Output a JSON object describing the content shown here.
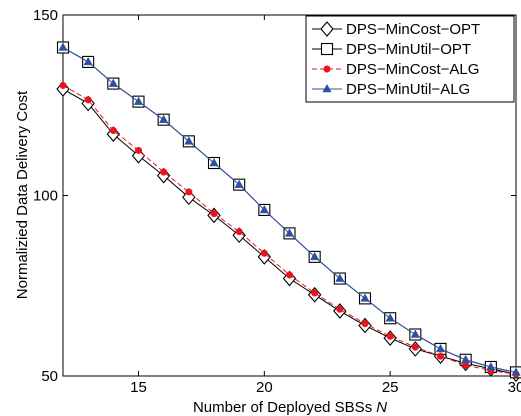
{
  "chart_data": {
    "type": "line",
    "xlabel": "Number of Deployed SBSs",
    "xlabel_var": "N",
    "ylabel": "Normalizied Data Delivery Cost",
    "xlim": [
      12,
      30
    ],
    "ylim": [
      50,
      150
    ],
    "xticks": [
      15,
      20,
      25,
      30
    ],
    "yticks": [
      50,
      100,
      150
    ],
    "grid": false,
    "legend_position": "top-right",
    "x": [
      12,
      13,
      14,
      15,
      16,
      17,
      18,
      19,
      20,
      21,
      22,
      23,
      24,
      25,
      26,
      27,
      28,
      29,
      30
    ],
    "series": [
      {
        "name": "DPS−MinCost−OPT",
        "marker": "diamond-open",
        "line": "solid",
        "color": "#000000",
        "values": [
          129.5,
          125.5,
          117.0,
          111.0,
          105.5,
          99.5,
          94.5,
          89.0,
          83.0,
          77.0,
          72.5,
          68.0,
          64.0,
          60.5,
          57.5,
          55.5,
          53.5,
          52.0,
          50.5
        ]
      },
      {
        "name": "DPS−MinUtil−OPT",
        "marker": "square-open",
        "line": "solid",
        "color": "#000000",
        "values": [
          141.0,
          137.0,
          131.0,
          126.0,
          121.0,
          115.0,
          109.0,
          103.0,
          96.0,
          89.5,
          83.0,
          77.0,
          71.5,
          66.0,
          61.5,
          57.5,
          54.5,
          52.5,
          51.0
        ]
      },
      {
        "name": "DPS−MinCost−ALG",
        "marker": "circle-filled",
        "line": "dashed",
        "color": "#e8141e",
        "values": [
          130.5,
          126.5,
          118.0,
          112.5,
          106.5,
          101.0,
          95.0,
          90.0,
          84.0,
          78.0,
          73.0,
          68.5,
          64.5,
          61.0,
          58.0,
          55.5,
          53.0,
          51.5,
          50.5
        ]
      },
      {
        "name": "DPS−MinUtil−ALG",
        "marker": "triangle-filled",
        "line": "solid",
        "color": "#2e4fa3",
        "values": [
          141.0,
          137.0,
          131.0,
          126.0,
          121.0,
          115.0,
          109.0,
          103.0,
          96.0,
          89.5,
          83.0,
          77.0,
          71.5,
          66.0,
          61.5,
          57.5,
          54.5,
          52.5,
          51.0
        ]
      }
    ]
  }
}
